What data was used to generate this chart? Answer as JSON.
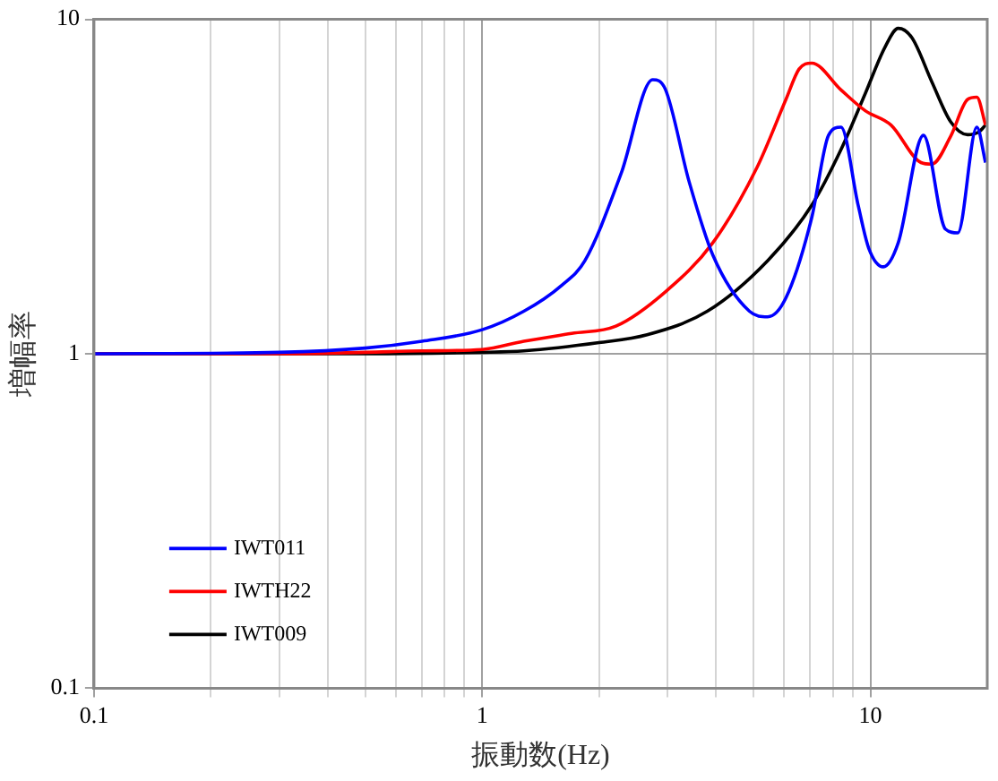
{
  "chart_data": {
    "type": "line",
    "xlabel": "振動数(Hz)",
    "ylabel": "増幅率",
    "log": "xy",
    "grid": true,
    "legend": "bottom left",
    "marker": "none",
    "line_style": "solid",
    "xlim": [
      0.1,
      20
    ],
    "ylim": [
      0.1,
      10
    ],
    "xticks": [
      0.1,
      {
        "value": 0.2,
        "label": null
      },
      {
        "value": 0.3,
        "label": null
      },
      {
        "value": 0.4,
        "label": null
      },
      {
        "value": 0.5,
        "label": null
      },
      {
        "value": 0.6,
        "label": null
      },
      {
        "value": 0.7,
        "label": null
      },
      {
        "value": 0.8,
        "label": null
      },
      {
        "value": 0.9,
        "label": null
      },
      1,
      {
        "value": 2,
        "label": null
      },
      {
        "value": 3,
        "label": null
      },
      {
        "value": 4,
        "label": null
      },
      {
        "value": 5,
        "label": null
      },
      {
        "value": 6,
        "label": null
      },
      {
        "value": 7,
        "label": null
      },
      {
        "value": 8,
        "label": null
      },
      {
        "value": 9,
        "label": null
      },
      10
    ],
    "yticks": [
      0.1,
      1,
      10
    ],
    "series": [
      {
        "name": "IWT011",
        "color": "#0000ff",
        "x": [
          0.1,
          0.3,
          0.5,
          0.7,
          1,
          1.28,
          1.6,
          1.84,
          2.28,
          2.75,
          2.96,
          3.41,
          3.93,
          4.88,
          5.44,
          6.06,
          7.06,
          7.8,
          8.4,
          9.3,
          9.9,
          10.8,
          11.8,
          13.7,
          15.6,
          16.8,
          18.8,
          19.8
        ],
        "values": [
          1,
          1.01,
          1.04,
          1.09,
          1.18,
          1.34,
          1.6,
          1.9,
          3.46,
          6.6,
          6.2,
          3.28,
          1.97,
          1.34,
          1.29,
          1.47,
          2.55,
          4.5,
          4.76,
          2.78,
          2.07,
          1.82,
          2.15,
          4.5,
          2.36,
          2.3,
          4.76,
          3.73
        ]
      },
      {
        "name": "IWTH22",
        "color": "#ff0000",
        "x": [
          0.1,
          0.3,
          0.5,
          0.7,
          1,
          1.28,
          1.7,
          2.21,
          2.96,
          3.93,
          5.1,
          6.06,
          6.55,
          7.06,
          8.4,
          9.7,
          11.3,
          13.5,
          14.4,
          16.1,
          17.8,
          18.8,
          19.8
        ],
        "values": [
          1,
          1,
          1.01,
          1.02,
          1.03,
          1.09,
          1.15,
          1.21,
          1.53,
          2.15,
          3.6,
          5.76,
          7.1,
          7.4,
          6.15,
          5.33,
          4.83,
          3.73,
          3.69,
          4.47,
          5.76,
          5.85,
          4.83
        ]
      },
      {
        "name": "IWT009",
        "color": "#000000",
        "x": [
          0.1,
          0.5,
          1,
          1.28,
          2,
          2.66,
          3.8,
          5.44,
          7.06,
          8.4,
          9.7,
          10.9,
          11.8,
          12.8,
          14.4,
          16.1,
          17.8,
          19,
          19.8
        ],
        "values": [
          1,
          1,
          1.01,
          1.02,
          1.08,
          1.14,
          1.34,
          1.9,
          2.78,
          4.08,
          6,
          8.25,
          9.4,
          8.8,
          6.5,
          4.94,
          4.52,
          4.6,
          4.83
        ]
      }
    ]
  }
}
